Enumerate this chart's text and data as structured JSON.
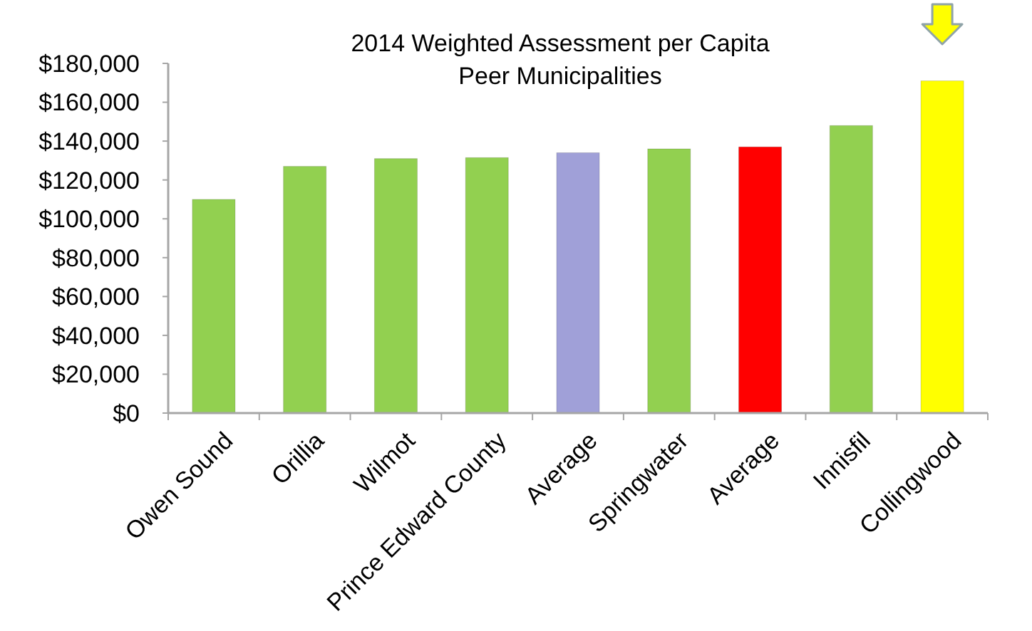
{
  "chart_data": {
    "type": "bar",
    "title": "2014 Weighted Assessment per Capita\nPeer Municipalities",
    "categories": [
      "Owen Sound",
      "Orillia",
      "Wilmot",
      "Prince Edward County",
      "Average",
      "Springwater",
      "Average",
      "Innisfil",
      "Collingwood"
    ],
    "values": [
      110000,
      127000,
      131000,
      131500,
      134000,
      136000,
      137000,
      148000,
      171000
    ],
    "colors": [
      "#92d050",
      "#92d050",
      "#92d050",
      "#92d050",
      "#a0a0d8",
      "#92d050",
      "#ff0000",
      "#92d050",
      "#ffff00"
    ],
    "ylim": [
      0,
      180000
    ],
    "yticks": [
      {
        "value": 0,
        "label": "$0"
      },
      {
        "value": 20000,
        "label": "$20,000"
      },
      {
        "value": 40000,
        "label": "$40,000"
      },
      {
        "value": 60000,
        "label": "$60,000"
      },
      {
        "value": 80000,
        "label": "$80,000"
      },
      {
        "value": 100000,
        "label": "$100,000"
      },
      {
        "value": 120000,
        "label": "$120,000"
      },
      {
        "value": 140000,
        "label": "$140,000"
      },
      {
        "value": 160000,
        "label": "$160,000"
      },
      {
        "value": 180000,
        "label": "$180,000"
      }
    ]
  }
}
